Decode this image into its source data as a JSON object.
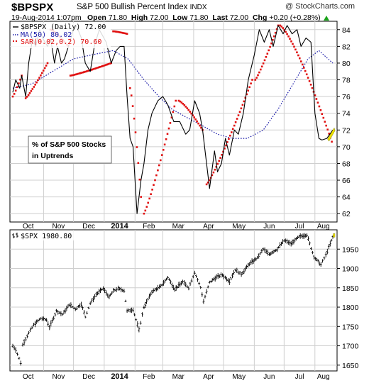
{
  "header": {
    "symbol": "$BPSPX",
    "name": "S&P 500 Bullish Percent Index",
    "exchange": "INDX",
    "date": "19-Aug-2014 1:07pm",
    "open_label": "Open",
    "open": "71.80",
    "high_label": "High",
    "high": "72.00",
    "low_label": "Low",
    "low": "71.80",
    "last_label": "Last",
    "last": "72.00",
    "chg_label": "Chg",
    "chg": "+0.20 (+0.28%)",
    "brand": "@ StockCharts.com"
  },
  "colors": {
    "price": "#000000",
    "ma": "#1a1aa8",
    "sar": "#e01010",
    "grid": "#cfcfcf",
    "panel_bg": "#ffffff",
    "highlight": "#f2e400"
  },
  "months": [
    "Oct",
    "Nov",
    "Dec",
    "2014",
    "Feb",
    "Mar",
    "Apr",
    "May",
    "Jun",
    "Jul",
    "Aug"
  ],
  "chart_data": [
    {
      "type": "line",
      "title": "$BPSPX (Daily) 72.00",
      "annotation": "% of S&P 500 Stocks in Uptrends",
      "annotation_lines": [
        "% of S&P 500 Stocks",
        "in Uptrends"
      ],
      "ylim": [
        61,
        85
      ],
      "yticks": [
        62,
        64,
        66,
        68,
        70,
        72,
        74,
        76,
        78,
        80,
        82,
        84
      ],
      "grid": true,
      "legend": "top-left",
      "x_range": [
        "2013-10-01",
        "2014-08-19"
      ],
      "series": [
        {
          "name": "$BPSPX (Daily) 72.00",
          "style": "line",
          "points": [
            [
              "2013-10-01",
              76.5
            ],
            [
              "2013-10-04",
              78.0
            ],
            [
              "2013-10-08",
              77.0
            ],
            [
              "2013-10-10",
              78.5
            ],
            [
              "2013-10-14",
              76.0
            ],
            [
              "2013-10-17",
              80.0
            ],
            [
              "2013-10-21",
              83.0
            ],
            [
              "2013-10-24",
              82.0
            ],
            [
              "2013-10-28",
              84.0
            ],
            [
              "2013-10-31",
              83.0
            ],
            [
              "2013-11-05",
              82.0
            ],
            [
              "2013-11-08",
              83.0
            ],
            [
              "2013-11-12",
              80.0
            ],
            [
              "2013-11-15",
              82.0
            ],
            [
              "2013-11-19",
              80.0
            ],
            [
              "2013-11-22",
              80.5
            ],
            [
              "2013-11-26",
              82.0
            ],
            [
              "2013-12-01",
              84.0
            ],
            [
              "2013-12-04",
              84.5
            ],
            [
              "2013-12-09",
              83.0
            ],
            [
              "2013-12-13",
              80.0
            ],
            [
              "2013-12-18",
              79.0
            ],
            [
              "2013-12-22",
              82.0
            ],
            [
              "2013-12-27",
              84.0
            ],
            [
              "2014-01-03",
              82.5
            ],
            [
              "2014-01-08",
              80.0
            ],
            [
              "2014-01-13",
              81.5
            ],
            [
              "2014-01-17",
              82.0
            ],
            [
              "2014-01-21",
              82.0
            ],
            [
              "2014-01-24",
              76.0
            ],
            [
              "2014-01-27",
              71.0
            ],
            [
              "2014-01-30",
              70.0
            ],
            [
              "2014-02-03",
              62.0
            ],
            [
              "2014-02-07",
              66.0
            ],
            [
              "2014-02-10",
              68.0
            ],
            [
              "2014-02-14",
              72.0
            ],
            [
              "2014-02-18",
              74.0
            ],
            [
              "2014-02-24",
              75.5
            ],
            [
              "2014-03-01",
              76.0
            ],
            [
              "2014-03-06",
              75.0
            ],
            [
              "2014-03-12",
              73.0
            ],
            [
              "2014-03-18",
              73.0
            ],
            [
              "2014-03-24",
              71.5
            ],
            [
              "2014-03-28",
              72.0
            ],
            [
              "2014-04-02",
              75.5
            ],
            [
              "2014-04-07",
              74.0
            ],
            [
              "2014-04-10",
              72.0
            ],
            [
              "2014-04-14",
              68.0
            ],
            [
              "2014-04-17",
              65.0
            ],
            [
              "2014-04-22",
              69.5
            ],
            [
              "2014-04-25",
              67.0
            ],
            [
              "2014-04-29",
              68.0
            ],
            [
              "2014-05-03",
              71.0
            ],
            [
              "2014-05-07",
              69.0
            ],
            [
              "2014-05-12",
              72.0
            ],
            [
              "2014-05-16",
              71.5
            ],
            [
              "2014-05-21",
              74.0
            ],
            [
              "2014-05-26",
              78.0
            ],
            [
              "2014-06-01",
              81.0
            ],
            [
              "2014-06-06",
              84.0
            ],
            [
              "2014-06-11",
              82.5
            ],
            [
              "2014-06-16",
              84.0
            ],
            [
              "2014-06-20",
              82.0
            ],
            [
              "2014-06-25",
              84.5
            ],
            [
              "2014-06-30",
              83.5
            ],
            [
              "2014-07-04",
              84.5
            ],
            [
              "2014-07-09",
              83.5
            ],
            [
              "2014-07-14",
              84.0
            ],
            [
              "2014-07-18",
              82.0
            ],
            [
              "2014-07-23",
              83.0
            ],
            [
              "2014-07-28",
              82.5
            ],
            [
              "2014-08-01",
              74.0
            ],
            [
              "2014-08-05",
              71.0
            ],
            [
              "2014-08-08",
              70.8
            ],
            [
              "2014-08-13",
              71.0
            ],
            [
              "2014-08-19",
              72.0
            ]
          ]
        },
        {
          "name": "MA(50) 80.02",
          "style": "dotted",
          "points": [
            [
              "2013-10-01",
              77.0
            ],
            [
              "2013-10-20",
              77.5
            ],
            [
              "2013-11-10",
              79.0
            ],
            [
              "2013-12-01",
              80.5
            ],
            [
              "2013-12-20",
              81.0
            ],
            [
              "2014-01-10",
              81.5
            ],
            [
              "2014-01-25",
              80.5
            ],
            [
              "2014-02-10",
              78.0
            ],
            [
              "2014-02-25",
              76.0
            ],
            [
              "2014-03-10",
              74.5
            ],
            [
              "2014-03-25",
              73.5
            ],
            [
              "2014-04-10",
              72.5
            ],
            [
              "2014-04-25",
              71.5
            ],
            [
              "2014-05-10",
              71.0
            ],
            [
              "2014-05-25",
              71.0
            ],
            [
              "2014-06-10",
              72.0
            ],
            [
              "2014-06-25",
              74.5
            ],
            [
              "2014-07-10",
              77.5
            ],
            [
              "2014-07-25",
              80.5
            ],
            [
              "2014-08-05",
              81.5
            ],
            [
              "2014-08-19",
              80.0
            ]
          ]
        },
        {
          "name": "SAR(0.02,0.2) 70.60",
          "style": "markers",
          "segments": [
            {
              "from": "2013-10-01",
              "to": "2013-10-10",
              "start": 76.0,
              "end": 78.5
            },
            {
              "from": "2013-10-14",
              "to": "2013-11-05",
              "start": 75.8,
              "end": 80.0
            },
            {
              "from": "2013-11-08",
              "to": "2013-11-26",
              "start": 84.0,
              "end": 82.0
            },
            {
              "from": "2013-11-28",
              "to": "2014-01-08",
              "start": 78.5,
              "end": 80.0
            },
            {
              "from": "2014-01-10",
              "to": "2014-01-24",
              "start": 83.8,
              "end": 83.5
            },
            {
              "from": "2014-01-27",
              "to": "2014-02-07",
              "start": 77.0,
              "end": 64.0
            },
            {
              "from": "2014-02-10",
              "to": "2014-03-14",
              "start": 62.0,
              "end": 75.5
            },
            {
              "from": "2014-03-17",
              "to": "2014-04-10",
              "start": 75.5,
              "end": 72.0
            },
            {
              "from": "2014-04-14",
              "to": "2014-05-30",
              "start": 65.5,
              "end": 78.0
            },
            {
              "from": "2014-06-02",
              "to": "2014-06-25",
              "start": 78.0,
              "end": 84.5
            },
            {
              "from": "2014-06-27",
              "to": "2014-08-18",
              "start": 84.5,
              "end": 70.6
            }
          ]
        }
      ]
    },
    {
      "type": "line",
      "title": "$SPX 1980.80",
      "ylim": [
        1635,
        2000
      ],
      "yticks": [
        1650,
        1700,
        1750,
        1800,
        1850,
        1900,
        1950
      ],
      "grid": true,
      "legend": "top-left",
      "x_range": [
        "2013-10-01",
        "2014-08-19"
      ],
      "series": [
        {
          "name": "$SPX 1980.80",
          "style": "ohlc",
          "points": [
            [
              "2013-10-01",
              1700
            ],
            [
              "2013-10-04",
              1690
            ],
            [
              "2013-10-09",
              1656
            ],
            [
              "2013-10-11",
              1703
            ],
            [
              "2013-10-17",
              1733
            ],
            [
              "2013-10-22",
              1754
            ],
            [
              "2013-10-29",
              1771
            ],
            [
              "2013-11-04",
              1767
            ],
            [
              "2013-11-07",
              1748
            ],
            [
              "2013-11-14",
              1790
            ],
            [
              "2013-11-20",
              1781
            ],
            [
              "2013-11-27",
              1807
            ],
            [
              "2013-12-03",
              1795
            ],
            [
              "2013-12-09",
              1808
            ],
            [
              "2013-12-13",
              1775
            ],
            [
              "2013-12-18",
              1810
            ],
            [
              "2013-12-24",
              1833
            ],
            [
              "2013-12-31",
              1848
            ],
            [
              "2014-01-06",
              1826
            ],
            [
              "2014-01-10",
              1842
            ],
            [
              "2014-01-15",
              1848
            ],
            [
              "2014-01-21",
              1843
            ],
            [
              "2014-01-24",
              1790
            ],
            [
              "2014-01-30",
              1794
            ],
            [
              "2014-02-05",
              1741
            ],
            [
              "2014-02-10",
              1800
            ],
            [
              "2014-02-18",
              1840
            ],
            [
              "2014-02-27",
              1854
            ],
            [
              "2014-03-06",
              1877
            ],
            [
              "2014-03-13",
              1846
            ],
            [
              "2014-03-21",
              1866
            ],
            [
              "2014-03-27",
              1850
            ],
            [
              "2014-04-02",
              1890
            ],
            [
              "2014-04-08",
              1851
            ],
            [
              "2014-04-11",
              1815
            ],
            [
              "2014-04-17",
              1864
            ],
            [
              "2014-04-24",
              1878
            ],
            [
              "2014-04-30",
              1883
            ],
            [
              "2014-05-07",
              1867
            ],
            [
              "2014-05-13",
              1897
            ],
            [
              "2014-05-19",
              1885
            ],
            [
              "2014-05-27",
              1912
            ],
            [
              "2014-06-04",
              1927
            ],
            [
              "2014-06-10",
              1950
            ],
            [
              "2014-06-16",
              1937
            ],
            [
              "2014-06-24",
              1950
            ],
            [
              "2014-07-01",
              1973
            ],
            [
              "2014-07-08",
              1964
            ],
            [
              "2014-07-16",
              1982
            ],
            [
              "2014-07-24",
              1987
            ],
            [
              "2014-07-31",
              1930
            ],
            [
              "2014-08-07",
              1910
            ],
            [
              "2014-08-12",
              1935
            ],
            [
              "2014-08-15",
              1955
            ],
            [
              "2014-08-19",
              1981
            ]
          ]
        }
      ]
    }
  ]
}
